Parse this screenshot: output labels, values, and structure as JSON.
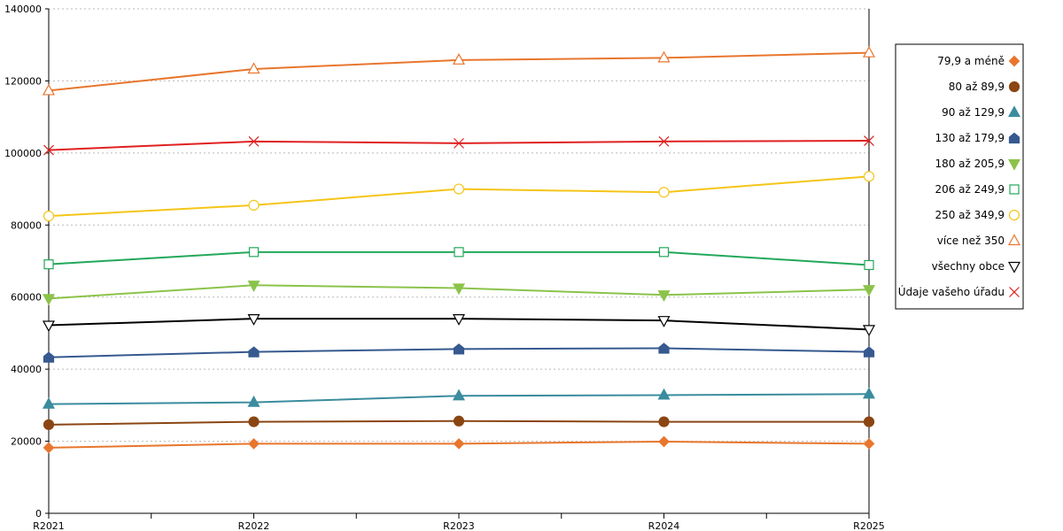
{
  "chart_data": {
    "type": "line",
    "title": "",
    "xlabel": "",
    "ylabel": "",
    "x": [
      "R2021",
      "R2022",
      "R2023",
      "R2024",
      "R2025"
    ],
    "ylim": [
      0,
      140000
    ],
    "yticks": [
      0,
      20000,
      40000,
      60000,
      80000,
      100000,
      120000,
      140000
    ],
    "grid": "horizontal dotted",
    "legend_position": "right",
    "series": [
      {
        "name": "79,9 a méně",
        "color": "#e8762d",
        "marker": "diamond",
        "values": [
          18200,
          19300,
          19300,
          19900,
          19300
        ]
      },
      {
        "name": "80 až 89,9",
        "color": "#8b4513",
        "marker": "circle",
        "values": [
          24600,
          25400,
          25600,
          25400,
          25400
        ]
      },
      {
        "name": "90 až 129,9",
        "color": "#3a8c9e",
        "marker": "triangle-up",
        "values": [
          30300,
          30800,
          32600,
          32800,
          33100
        ]
      },
      {
        "name": "130 až 179,9",
        "color": "#36598f",
        "marker": "pentagon",
        "values": [
          43300,
          44800,
          45600,
          45800,
          44800
        ]
      },
      {
        "name": "180 až 205,9",
        "color": "#8bc34a",
        "marker": "triangle-down",
        "values": [
          59600,
          63300,
          62500,
          60600,
          62100
        ]
      },
      {
        "name": "206 až 249,9",
        "color": "#22a85a",
        "marker": "square-open",
        "values": [
          69100,
          72500,
          72500,
          72500,
          68900
        ]
      },
      {
        "name": "250 až 349,9",
        "color": "#f5c518",
        "marker": "circle-open",
        "values": [
          82500,
          85500,
          90000,
          89100,
          93500
        ]
      },
      {
        "name": "více než 350",
        "color": "#e8762d",
        "marker": "triangle-up-open",
        "values": [
          117300,
          123300,
          125800,
          126400,
          127800
        ]
      },
      {
        "name": "všechny obce",
        "color": "#000000",
        "marker": "triangle-down-open",
        "values": [
          52200,
          54000,
          54000,
          53500,
          51000
        ]
      },
      {
        "name": "Údaje vašeho úřadu",
        "color": "#e02020",
        "marker": "x",
        "values": [
          100800,
          103200,
          102700,
          103200,
          103400
        ]
      }
    ]
  }
}
